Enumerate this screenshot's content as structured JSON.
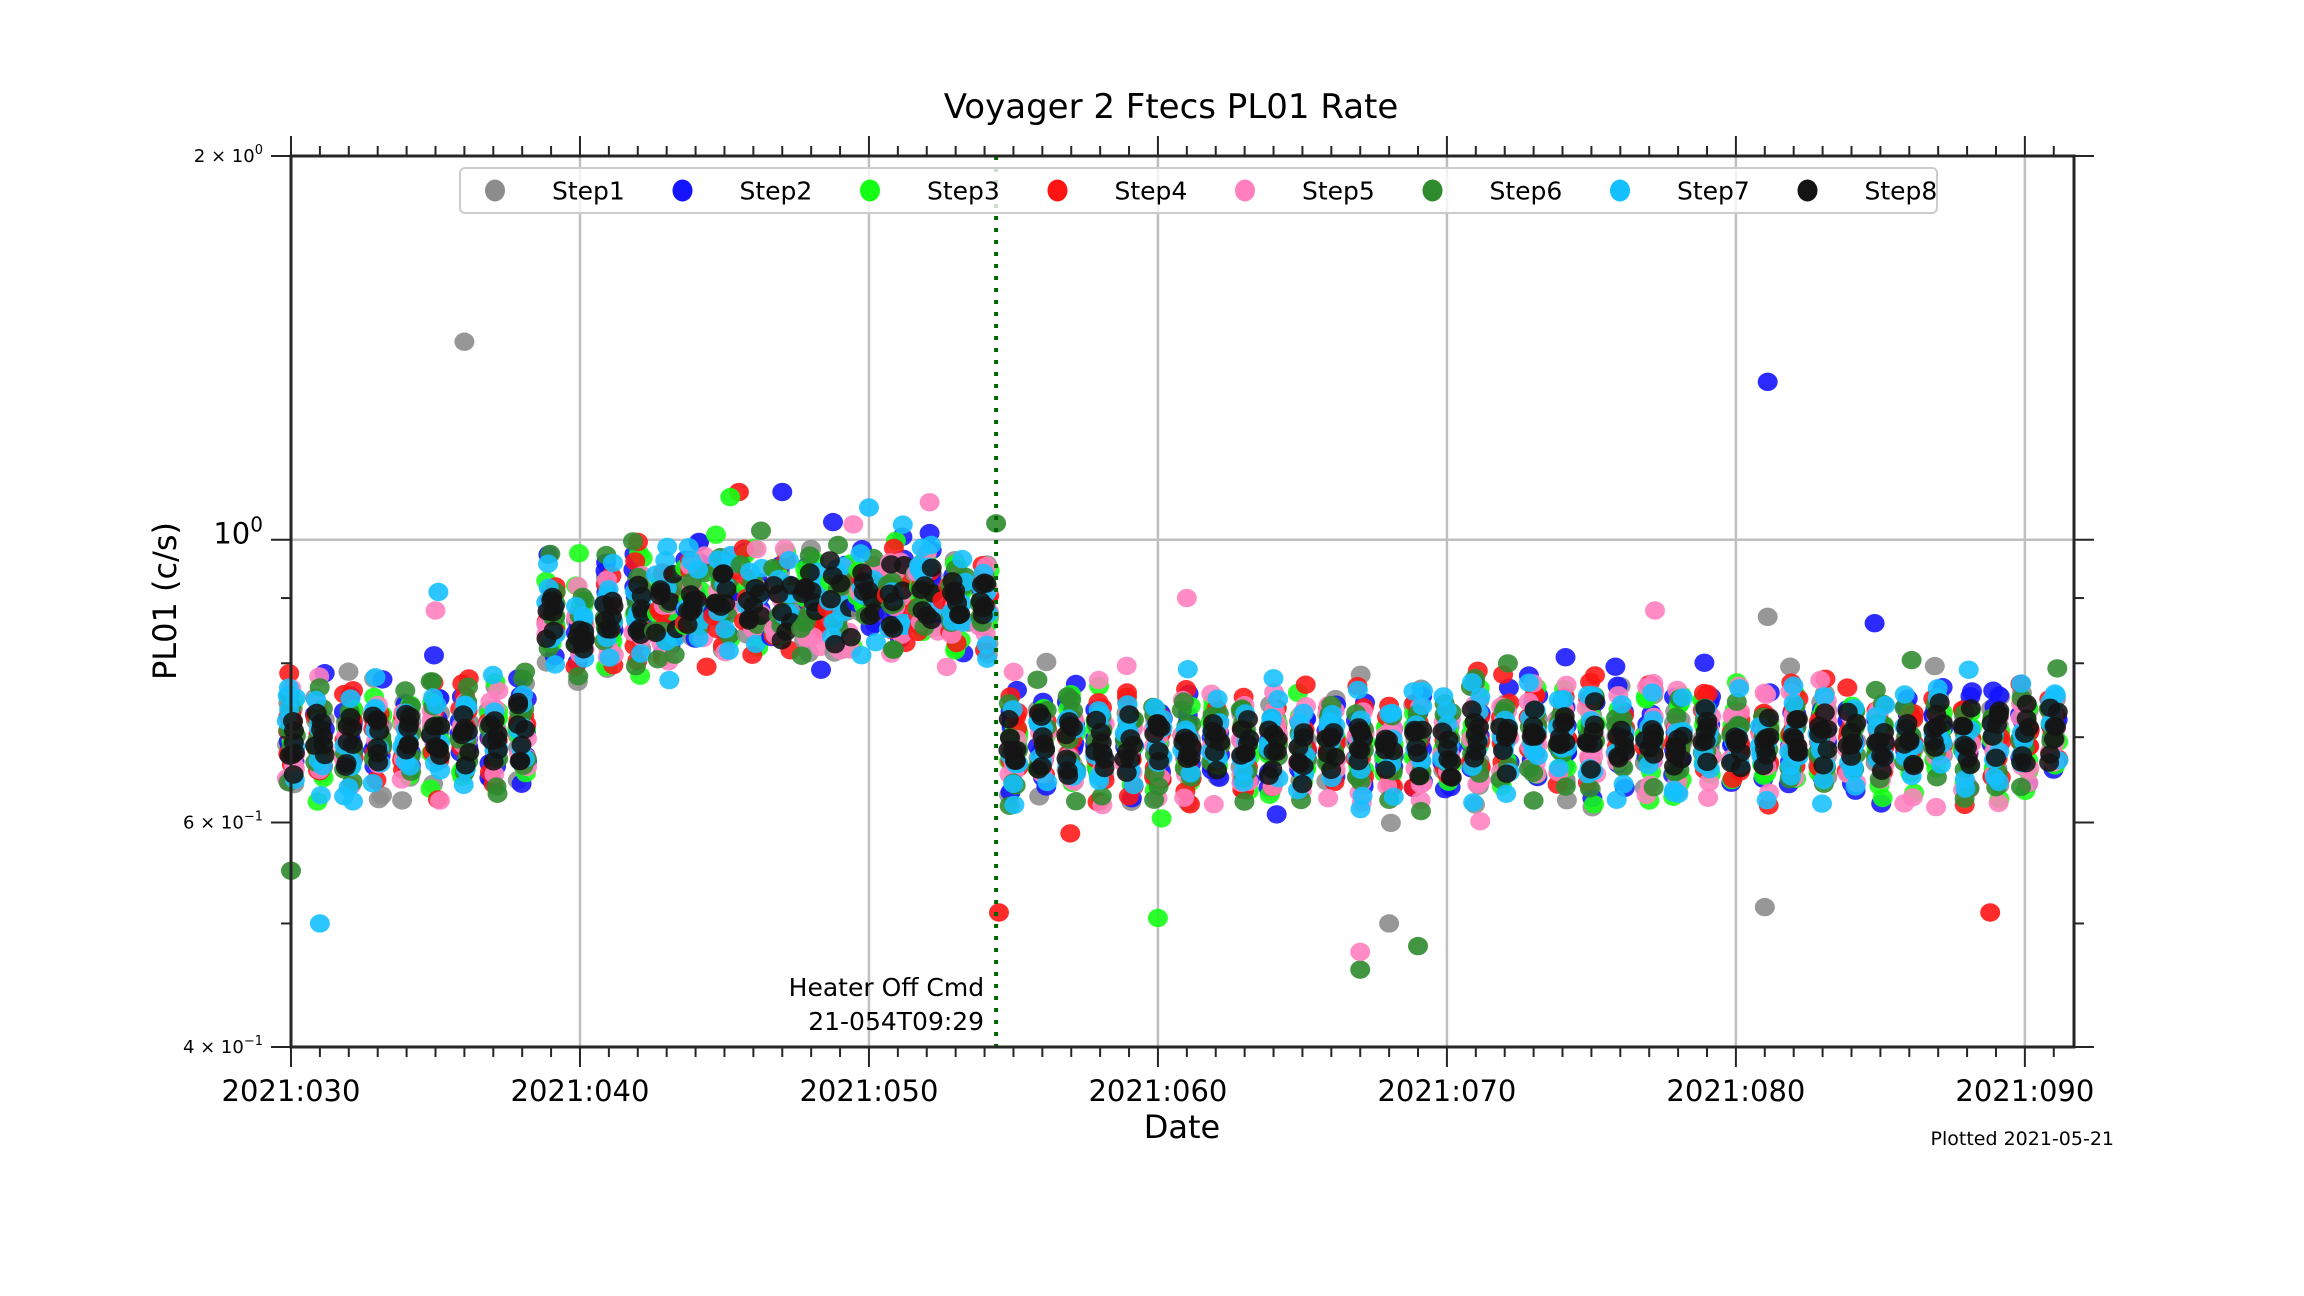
{
  "chart_data": {
    "type": "scatter",
    "title": "Voyager 2 Ftecs PL01 Rate",
    "xlabel": "Date",
    "ylabel": "PL01 (c/s)",
    "yscale": "log",
    "ylim": [
      0.4,
      2.0
    ],
    "xlim": [
      30,
      91.7
    ],
    "x_major_ticks": [
      30,
      40,
      50,
      60,
      70,
      80,
      90
    ],
    "x_tick_labels": [
      "2021:030",
      "2021:040",
      "2021:050",
      "2021:060",
      "2021:070",
      "2021:080",
      "2021:090"
    ],
    "x_minor_tick_step": 1,
    "y_major_ticks": [
      0.4,
      0.6,
      1.0,
      2.0
    ],
    "y_tick_labels": [
      {
        "value": 2.0,
        "mantissa": "2 × 10",
        "exp": "0",
        "size": "small"
      },
      {
        "value": 1.0,
        "mantissa": "10",
        "exp": "0",
        "size": "large"
      },
      {
        "value": 0.6,
        "mantissa": "6 × 10",
        "exp": "−1",
        "size": "small"
      },
      {
        "value": 0.4,
        "mantissa": "4 × 10",
        "exp": "−1",
        "size": "small"
      }
    ],
    "y_minor_ticks": [
      0.5,
      0.7,
      0.8,
      0.9
    ],
    "grid": true,
    "legend_position": "top-center",
    "legend": [
      "Step1",
      "Step2",
      "Step3",
      "Step4",
      "Step5",
      "Step6",
      "Step7",
      "Step8"
    ],
    "colors": {
      "Step1": "#8c8c8c",
      "Step2": "#1414ff",
      "Step3": "#14ff14",
      "Step4": "#ff1414",
      "Step5": "#ff7fbf",
      "Step6": "#2e8b2e",
      "Step7": "#14c0ff",
      "Step8": "#141414"
    },
    "annotation": {
      "line_x": 54.4,
      "line_color": "#006400",
      "line_style": "dotted",
      "text_line1": "Heater Off Cmd",
      "text_line2": "21-054T09:29"
    },
    "footer_note": "Plotted 2021-05-21",
    "data_gap_days": [],
    "days": [
      30,
      31,
      32,
      33,
      34,
      35,
      36,
      37,
      38,
      39,
      40,
      41,
      42,
      43,
      44,
      45,
      46,
      47,
      48,
      49,
      50,
      51,
      52,
      53,
      54,
      55,
      56,
      57,
      58,
      59,
      60,
      61,
      62,
      63,
      64,
      65,
      66,
      67,
      68,
      69,
      70,
      71,
      72,
      73,
      74,
      75,
      76,
      77,
      78,
      79,
      80,
      81,
      82,
      83,
      84,
      85,
      86,
      87,
      88,
      89,
      90,
      91
    ],
    "daily_level": [
      0.7,
      0.7,
      0.7,
      0.7,
      0.7,
      0.71,
      0.71,
      0.7,
      0.7,
      0.86,
      0.86,
      0.87,
      0.88,
      0.88,
      0.9,
      0.9,
      0.9,
      0.9,
      0.9,
      0.9,
      0.91,
      0.91,
      0.91,
      0.9,
      0.88,
      0.69,
      0.69,
      0.69,
      0.69,
      0.69,
      0.69,
      0.69,
      0.69,
      0.69,
      0.69,
      0.69,
      0.69,
      0.69,
      0.69,
      0.69,
      0.69,
      0.7,
      0.7,
      0.7,
      0.7,
      0.7,
      0.7,
      0.7,
      0.7,
      0.7,
      0.7,
      0.7,
      0.7,
      0.7,
      0.7,
      0.7,
      0.7,
      0.7,
      0.7,
      0.7,
      0.7,
      0.7
    ],
    "daily_spread": 0.1,
    "outliers": [
      {
        "series": "Step1",
        "day": 36.0,
        "value": 1.43
      },
      {
        "series": "Step2",
        "day": 81.1,
        "value": 1.33
      },
      {
        "series": "Step7",
        "day": 31.0,
        "value": 0.5
      },
      {
        "series": "Step6",
        "day": 30.0,
        "value": 0.55
      },
      {
        "series": "Step6",
        "day": 67.0,
        "value": 0.46
      },
      {
        "series": "Step5",
        "day": 67.0,
        "value": 0.475
      },
      {
        "series": "Step1",
        "day": 68.0,
        "value": 0.5
      },
      {
        "series": "Step6",
        "day": 69.0,
        "value": 0.48
      },
      {
        "series": "Step3",
        "day": 60.0,
        "value": 0.505
      },
      {
        "series": "Step4",
        "day": 54.5,
        "value": 0.51
      },
      {
        "series": "Step1",
        "day": 81.0,
        "value": 0.515
      },
      {
        "series": "Step4",
        "day": 88.8,
        "value": 0.51
      },
      {
        "series": "Step4",
        "day": 45.5,
        "value": 1.09
      },
      {
        "series": "Step3",
        "day": 45.2,
        "value": 1.08
      },
      {
        "series": "Step2",
        "day": 47.0,
        "value": 1.09
      },
      {
        "series": "Step5",
        "day": 52.1,
        "value": 1.07
      },
      {
        "series": "Step7",
        "day": 50.0,
        "value": 1.06
      },
      {
        "series": "Step6",
        "day": 54.4,
        "value": 1.03
      },
      {
        "series": "Step5",
        "day": 61.0,
        "value": 0.9
      },
      {
        "series": "Step5",
        "day": 35.0,
        "value": 0.88
      },
      {
        "series": "Step7",
        "day": 35.1,
        "value": 0.91
      },
      {
        "series": "Step5",
        "day": 77.2,
        "value": 0.88
      },
      {
        "series": "Step1",
        "day": 81.1,
        "value": 0.87
      },
      {
        "series": "Step2",
        "day": 84.8,
        "value": 0.86
      }
    ]
  }
}
